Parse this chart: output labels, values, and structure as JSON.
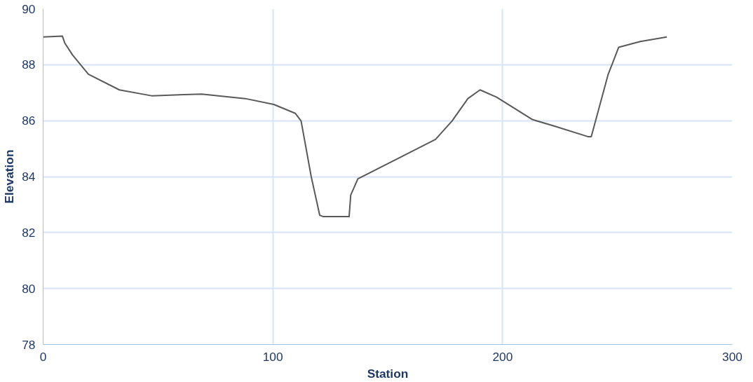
{
  "chart_data": {
    "type": "line",
    "xlabel": "Station",
    "ylabel": "Elevation",
    "x": [
      0,
      8.4,
      9.4,
      12.8,
      19.7,
      33.2,
      47.2,
      69,
      88,
      100.4,
      109.8,
      112.3,
      116.7,
      120.4,
      122,
      133.2,
      133.9,
      137,
      150.4,
      170.8,
      178,
      184.9,
      190.2,
      197.4,
      213,
      222.4,
      237.1,
      238.6,
      245.9,
      248.4,
      250.5,
      259.9,
      271.5
    ],
    "series": [
      {
        "color": "#595959",
        "values": [
          88.99,
          89.02,
          88.78,
          88.35,
          87.66,
          87.1,
          86.89,
          86.95,
          86.79,
          86.58,
          86.26,
          85.99,
          84.0,
          82.62,
          82.57,
          82.57,
          83.34,
          83.92,
          84.48,
          85.33,
          85.99,
          86.79,
          87.1,
          86.84,
          86.04,
          85.81,
          85.43,
          85.43,
          87.64,
          88.17,
          88.62,
          88.83,
          88.99
        ]
      }
    ],
    "xlim": [
      0,
      300
    ],
    "xticks": [
      0,
      100,
      200,
      300
    ],
    "ylim": [
      78,
      90
    ],
    "yticks": [
      78,
      80,
      82,
      84,
      86,
      88,
      90
    ],
    "grid": true
  }
}
